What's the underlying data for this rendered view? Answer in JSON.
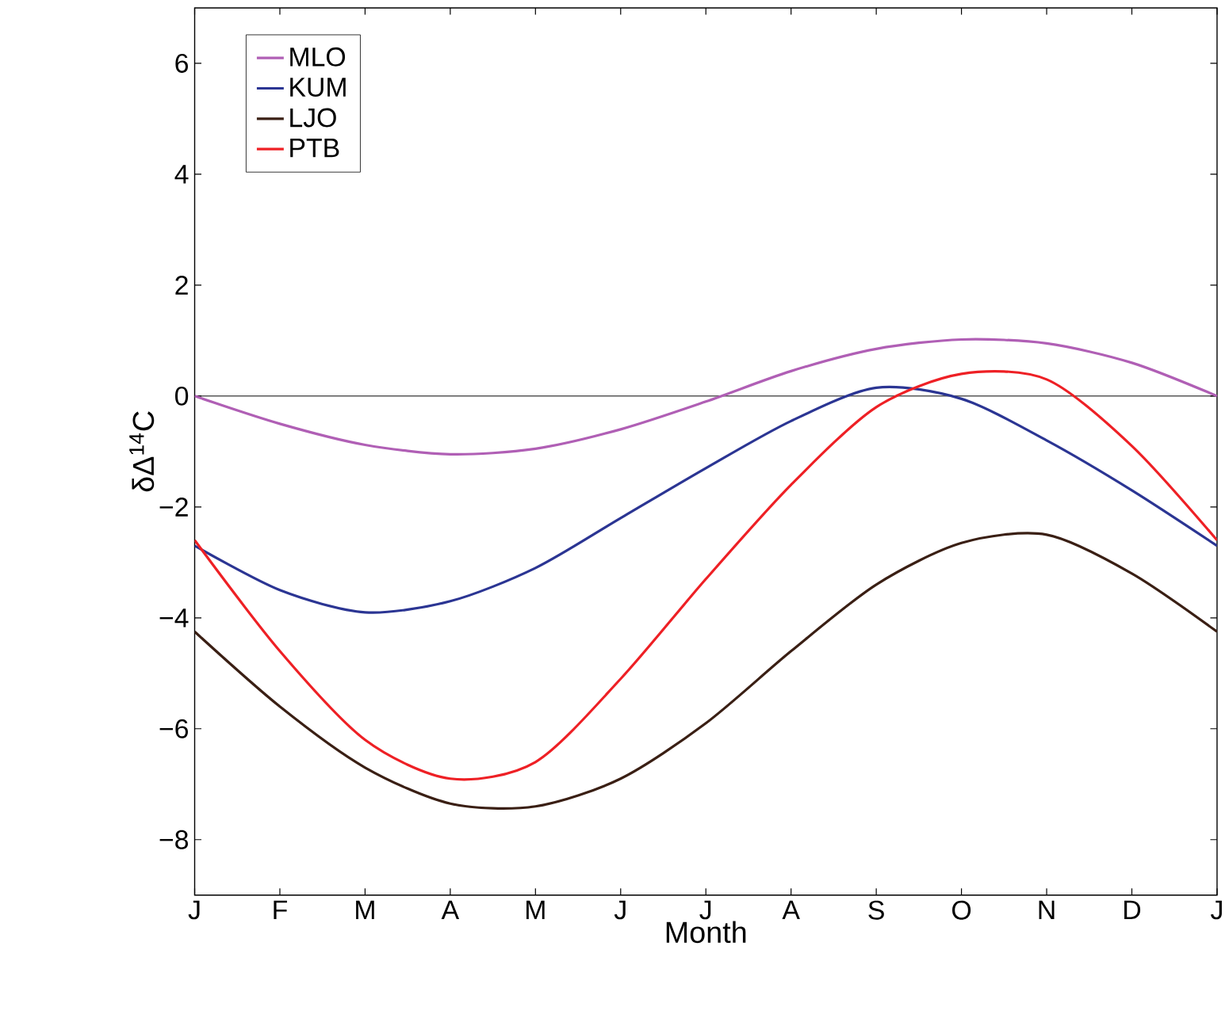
{
  "chart_data": {
    "type": "line",
    "xlabel": "Month",
    "ylabel": "δΔ$^{14}$C",
    "categories": [
      "J",
      "F",
      "M",
      "A",
      "M",
      "J",
      "J",
      "A",
      "S",
      "O",
      "N",
      "D",
      "J"
    ],
    "ylim": [
      -9,
      7
    ],
    "yticks": [
      {
        "value": -8,
        "label": "−8"
      },
      {
        "value": -6,
        "label": "−6"
      },
      {
        "value": -4,
        "label": "−4"
      },
      {
        "value": -2,
        "label": "−2"
      },
      0,
      2,
      4,
      6
    ],
    "series": [
      {
        "name": "MLO",
        "color": "#b05fb5",
        "values": [
          0,
          -0.5,
          -0.88,
          -1.05,
          -0.95,
          -0.6,
          -0.1,
          0.45,
          0.85,
          1.02,
          0.95,
          0.6,
          0
        ]
      },
      {
        "name": "KUM",
        "color": "#2b3593",
        "values": [
          -2.7,
          -3.5,
          -3.9,
          -3.7,
          -3.1,
          -2.2,
          -1.3,
          -0.45,
          0.15,
          -0.05,
          -0.8,
          -1.7,
          -2.7
        ]
      },
      {
        "name": "LJO",
        "color": "#3a1f14",
        "values": [
          -4.25,
          -5.6,
          -6.7,
          -7.35,
          -7.4,
          -6.9,
          -5.9,
          -4.6,
          -3.4,
          -2.65,
          -2.5,
          -3.2,
          -4.25
        ]
      },
      {
        "name": "PTB",
        "color": "#ee2025",
        "values": [
          -2.6,
          -4.6,
          -6.2,
          -6.9,
          -6.6,
          -5.1,
          -3.3,
          -1.6,
          -0.2,
          0.4,
          0.3,
          -0.9,
          -2.6
        ]
      }
    ],
    "ref_lines": [
      {
        "axis": "y",
        "value": 0,
        "color": "#000000"
      }
    ],
    "legend": "top left",
    "grid": false,
    "marker": "none",
    "line_style": "solid"
  }
}
